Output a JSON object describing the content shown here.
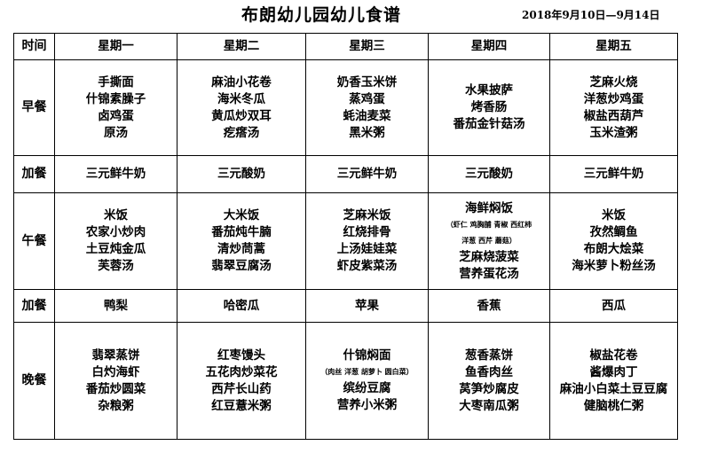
{
  "title": "布朗幼儿园幼儿食谱",
  "date_range": "2018年9月10日—9月14日",
  "header": {
    "time": "时间",
    "days": [
      "星期一",
      "星期二",
      "星期三",
      "星期四",
      "星期五"
    ]
  },
  "rows": [
    {
      "meal": "早餐",
      "cells": [
        [
          "手撕面",
          "什锦素臊子",
          "卤鸡蛋",
          "原汤"
        ],
        [
          "麻油小花卷",
          "海米冬瓜",
          "黄瓜炒双耳",
          "疙瘩汤"
        ],
        [
          "奶香玉米饼",
          "蒸鸡蛋",
          "蚝油麦菜",
          "黑米粥"
        ],
        [
          "水果披萨",
          "烤香肠",
          "番茄金针菇汤"
        ],
        [
          "芝麻火烧",
          "洋葱炒鸡蛋",
          "椒盐西葫芦",
          "玉米渣粥"
        ]
      ]
    },
    {
      "meal": "加餐",
      "cells": [
        [
          "三元鲜牛奶"
        ],
        [
          "三元酸奶"
        ],
        [
          "三元鲜牛奶"
        ],
        [
          "三元酸奶"
        ],
        [
          "三元鲜牛奶"
        ]
      ]
    },
    {
      "meal": "午餐",
      "cells": [
        [
          "米饭",
          "农家小炒肉",
          "土豆炖金瓜",
          "芙蓉汤"
        ],
        [
          "大米饭",
          "番茄炖牛腩",
          "清炒茼蒿",
          "翡翠豆腐汤"
        ],
        [
          "芝麻米饭",
          "红烧排骨",
          "上汤娃娃菜",
          "虾皮紫菜汤"
        ],
        [
          "海鲜焖饭",
          "（虾仁  鸡胸脯  青椒  西红柿",
          "洋葱  西芹  蘑菇）",
          "芝麻烧菠菜",
          "营养蛋花汤"
        ],
        [
          "米饭",
          "孜然鲷鱼",
          "布朗大烩菜",
          "海米萝卜粉丝汤"
        ]
      ]
    },
    {
      "meal": "加餐",
      "cells": [
        [
          "鸭梨"
        ],
        [
          "哈密瓜"
        ],
        [
          "苹果"
        ],
        [
          "香蕉"
        ],
        [
          "西瓜"
        ]
      ]
    },
    {
      "meal": "晚餐",
      "cells": [
        [
          "翡翠蒸饼",
          "白灼海虾",
          "番茄炒圆菜",
          "杂粮粥"
        ],
        [
          "红枣馒头",
          "五花肉炒菜花",
          "西芹长山药",
          "红豆薏米粥"
        ],
        [
          "什锦焖面",
          "（肉丝  洋葱  胡萝卜  圆白菜）",
          "缤纷豆腐",
          "营养小米粥"
        ],
        [
          "葱香蒸饼",
          "鱼香肉丝",
          "莴笋炒腐皮",
          "大枣南瓜粥"
        ],
        [
          "椒盐花卷",
          "酱爆肉丁",
          "麻油小白菜土豆豆腐",
          "健脑桃仁粥"
        ]
      ]
    }
  ]
}
